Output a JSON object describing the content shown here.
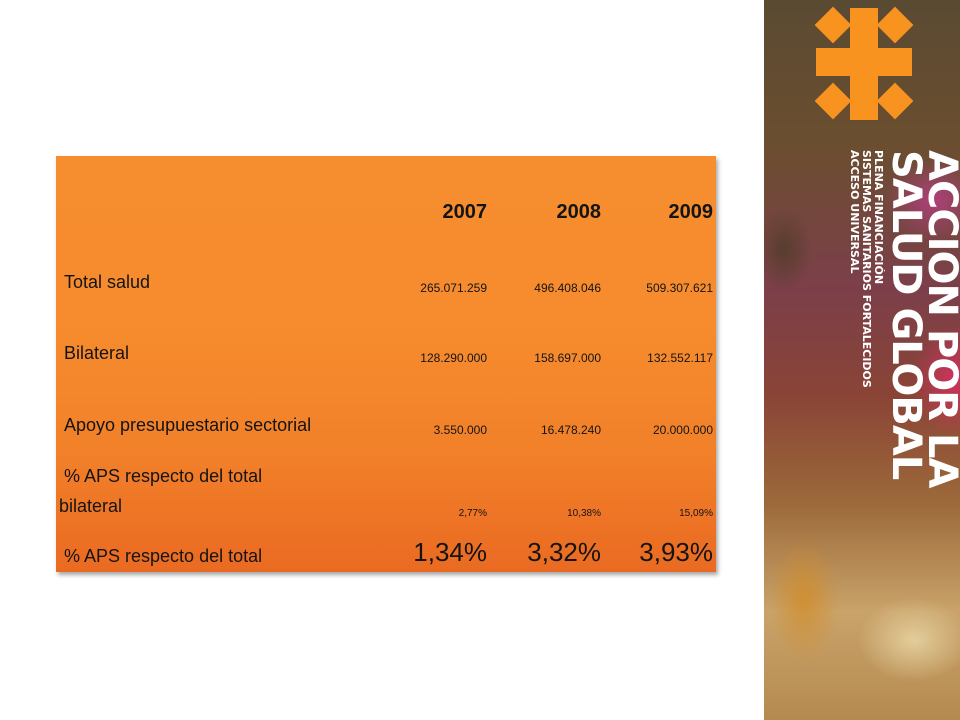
{
  "table": {
    "years": [
      "2007",
      "2008",
      "2009"
    ],
    "rows": [
      {
        "label": "Total salud",
        "values": [
          "265.071.259",
          "496.408.046",
          "509.307.621"
        ]
      },
      {
        "label": "Bilateral",
        "values": [
          "128.290.000",
          "158.697.000",
          "132.552.117"
        ]
      },
      {
        "label": "Apoyo presupuestario sectorial",
        "values": [
          "3.550.000",
          "16.478.240",
          "20.000.000"
        ]
      },
      {
        "label_line1": "% APS respecto del total",
        "label_line2": "bilateral",
        "values": [
          "2,77%",
          "10,38%",
          "15,09%"
        ]
      },
      {
        "label": "% APS respecto del total",
        "values": [
          "1,34%",
          "3,32%",
          "3,93%"
        ]
      }
    ]
  },
  "banner": {
    "title_line1": "ACCIÓN POR LA",
    "title_line2": "SALUD GLOBAL",
    "subtitle_lines": [
      "PLENA FINANCIACIÓN",
      "SISTEMAS SANITARIOS FORTALECIDOS",
      "ACCESO UNIVERSAL"
    ],
    "accent_color": "#f7931e",
    "logo_icon": "cross-asterisk-logo"
  }
}
